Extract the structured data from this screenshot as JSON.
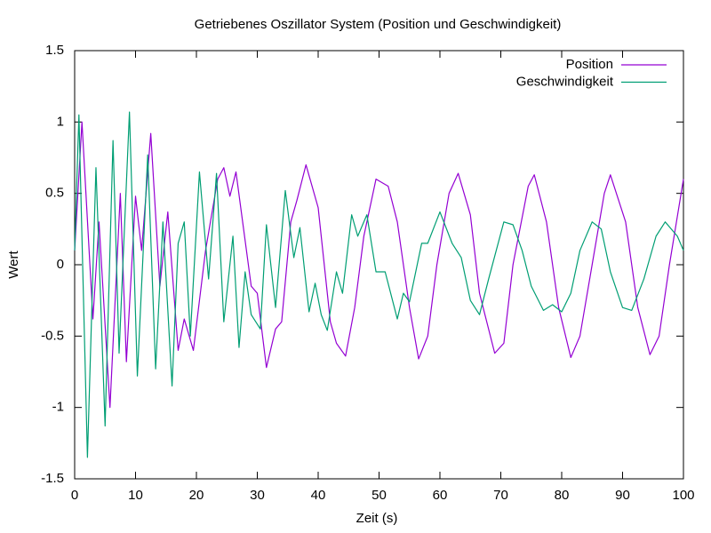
{
  "chart_data": {
    "type": "line",
    "title": "Getriebenes Oszillator System (Position und Geschwindigkeit)",
    "x_label": "Zeit (s)",
    "y_label": "Wert",
    "xlim": [
      0,
      100
    ],
    "ylim": [
      -1.5,
      1.5
    ],
    "xticks": [
      0,
      10,
      20,
      30,
      40,
      50,
      60,
      70,
      80,
      90,
      100
    ],
    "yticks": [
      -1.5,
      -1,
      -0.5,
      0,
      0.5,
      1,
      1.5
    ],
    "grid": false,
    "legend": "top-right",
    "series": [
      {
        "name": "Position",
        "color": "#9400d3",
        "x": [
          0,
          1.2,
          3,
          4,
          5.8,
          7.5,
          8.5,
          10,
          11,
          12.5,
          14,
          15.3,
          17,
          18,
          19.5,
          21.5,
          23.5,
          24.5,
          25.5,
          26.5,
          29,
          30,
          31.5,
          33,
          34,
          35.5,
          36.5,
          38,
          40,
          42,
          43,
          44.5,
          46,
          47.5,
          49.5,
          51.5,
          53,
          55,
          56.5,
          58,
          59.5,
          61.5,
          63,
          65,
          66.5,
          69,
          70.5,
          72,
          74.5,
          75.5,
          77.5,
          79.5,
          81.5,
          83,
          85,
          87,
          88,
          90.5,
          92.5,
          94.5,
          96,
          97.7,
          100
        ],
        "values": [
          0.1,
          1.0,
          -0.38,
          0.3,
          -1.0,
          0.5,
          -0.68,
          0.48,
          0.1,
          0.92,
          -0.15,
          0.37,
          -0.6,
          -0.38,
          -0.6,
          0.1,
          0.6,
          0.68,
          0.48,
          0.65,
          -0.15,
          -0.2,
          -0.72,
          -0.45,
          -0.4,
          0.3,
          0.45,
          0.7,
          0.4,
          -0.4,
          -0.55,
          -0.64,
          -0.3,
          0.2,
          0.6,
          0.55,
          0.3,
          -0.3,
          -0.66,
          -0.5,
          0,
          0.5,
          0.64,
          0.35,
          -0.2,
          -0.62,
          -0.55,
          0,
          0.55,
          0.63,
          0.3,
          -0.3,
          -0.65,
          -0.5,
          0,
          0.5,
          0.63,
          0.3,
          -0.3,
          -0.63,
          -0.5,
          0,
          0.6
        ]
      },
      {
        "name": "Geschwindigkeit",
        "color": "#009e73",
        "x": [
          0,
          0.7,
          2.1,
          3.5,
          5,
          6.3,
          7.3,
          9,
          10.3,
          12,
          13.3,
          14.5,
          16,
          17,
          18,
          19,
          20.5,
          22,
          23.3,
          24.5,
          26,
          27,
          28,
          29,
          30.5,
          31.5,
          33,
          34.6,
          36,
          37,
          38.5,
          39.5,
          40.5,
          41.5,
          43,
          44,
          45.5,
          46.5,
          48,
          49.5,
          51,
          53,
          54,
          55,
          57,
          58,
          60,
          62,
          63.5,
          65,
          66.5,
          68,
          70.5,
          72,
          73.5,
          75,
          77,
          78.5,
          80,
          81.5,
          83,
          85,
          86.5,
          88,
          90,
          91.5,
          93.5,
          95.5,
          97,
          99,
          100
        ],
        "values": [
          0.1,
          1.05,
          -1.35,
          0.68,
          -1.13,
          0.87,
          -0.62,
          1.07,
          -0.78,
          0.77,
          -0.73,
          0.3,
          -0.85,
          0.15,
          0.3,
          -0.5,
          0.65,
          -0.1,
          0.64,
          -0.4,
          0.2,
          -0.58,
          -0.05,
          -0.35,
          -0.45,
          0.28,
          -0.3,
          0.52,
          0.05,
          0.26,
          -0.33,
          -0.13,
          -0.35,
          -0.46,
          -0.05,
          -0.2,
          0.35,
          0.2,
          0.35,
          -0.05,
          -0.05,
          -0.38,
          -0.2,
          -0.26,
          0.15,
          0.15,
          0.37,
          0.15,
          0.05,
          -0.25,
          -0.35,
          -0.1,
          0.3,
          0.28,
          0.1,
          -0.15,
          -0.32,
          -0.28,
          -0.33,
          -0.2,
          0.1,
          0.3,
          0.25,
          -0.05,
          -0.3,
          -0.32,
          -0.1,
          0.2,
          0.3,
          0.2,
          0.1
        ]
      }
    ]
  }
}
